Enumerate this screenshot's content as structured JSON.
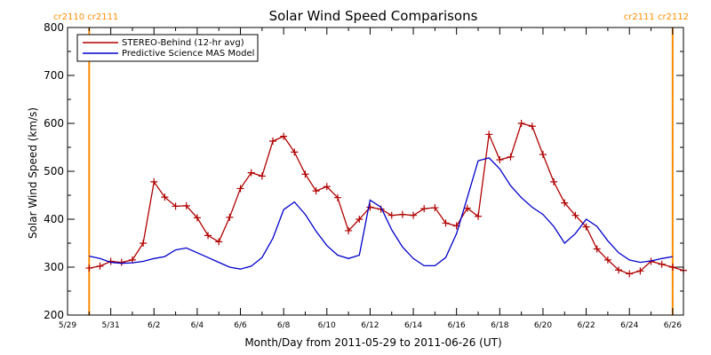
{
  "chart_data": {
    "type": "line",
    "title": "Solar Wind Speed Comparisons",
    "xlabel": "Month/Day from 2011-05-29 to 2011-06-26 (UT)",
    "ylabel": "Solar Wind Speed (km/s)",
    "ylim": [
      200,
      800
    ],
    "yticks": [
      200,
      300,
      400,
      500,
      600,
      700,
      800
    ],
    "xlim": [
      "2011-05-29",
      "2011-06-26 12:00"
    ],
    "xticks": [
      {
        "x": "2011-05-29",
        "label": "5/29"
      },
      {
        "x": "2011-05-31",
        "label": "5/31"
      },
      {
        "x": "2011-06-02",
        "label": "6/2"
      },
      {
        "x": "2011-06-04",
        "label": "6/4"
      },
      {
        "x": "2011-06-06",
        "label": "6/6"
      },
      {
        "x": "2011-06-08",
        "label": "6/8"
      },
      {
        "x": "2011-06-10",
        "label": "6/10"
      },
      {
        "x": "2011-06-12",
        "label": "6/12"
      },
      {
        "x": "2011-06-14",
        "label": "6/14"
      },
      {
        "x": "2011-06-16",
        "label": "6/16"
      },
      {
        "x": "2011-06-18",
        "label": "6/18"
      },
      {
        "x": "2011-06-20",
        "label": "6/20"
      },
      {
        "x": "2011-06-22",
        "label": "6/22"
      },
      {
        "x": "2011-06-24",
        "label": "6/24"
      },
      {
        "x": "2011-06-26",
        "label": "6/26"
      }
    ],
    "legend_position": "top-left",
    "grid": false,
    "vlines": [
      {
        "x": "2011-05-30",
        "label": "cr2110 cr2111",
        "color": "#ff8c00"
      },
      {
        "x": "2011-06-26",
        "label": "cr2111 cr2112",
        "color": "#ff8c00"
      }
    ],
    "series": [
      {
        "name": "STEREO-Behind (12-hr avg)",
        "color": "#b00000",
        "marker": "plus",
        "x": [
          "2011-05-30 00:00",
          "2011-05-30 12:00",
          "2011-05-31 00:00",
          "2011-05-31 12:00",
          "2011-06-01 00:00",
          "2011-06-01 12:00",
          "2011-06-02 00:00",
          "2011-06-02 12:00",
          "2011-06-03 00:00",
          "2011-06-03 12:00",
          "2011-06-04 00:00",
          "2011-06-04 12:00",
          "2011-06-05 00:00",
          "2011-06-05 12:00",
          "2011-06-06 00:00",
          "2011-06-06 12:00",
          "2011-06-07 00:00",
          "2011-06-07 12:00",
          "2011-06-08 00:00",
          "2011-06-08 12:00",
          "2011-06-09 00:00",
          "2011-06-09 12:00",
          "2011-06-10 00:00",
          "2011-06-10 12:00",
          "2011-06-11 00:00",
          "2011-06-11 12:00",
          "2011-06-12 00:00",
          "2011-06-12 12:00",
          "2011-06-13 00:00",
          "2011-06-13 12:00",
          "2011-06-14 00:00",
          "2011-06-14 12:00",
          "2011-06-15 00:00",
          "2011-06-15 12:00",
          "2011-06-16 00:00",
          "2011-06-16 12:00",
          "2011-06-17 00:00",
          "2011-06-17 12:00",
          "2011-06-18 00:00",
          "2011-06-18 12:00",
          "2011-06-19 00:00",
          "2011-06-19 12:00",
          "2011-06-20 00:00",
          "2011-06-20 12:00",
          "2011-06-21 00:00",
          "2011-06-21 12:00",
          "2011-06-22 00:00",
          "2011-06-22 12:00",
          "2011-06-23 00:00",
          "2011-06-23 12:00",
          "2011-06-24 00:00",
          "2011-06-24 12:00",
          "2011-06-25 00:00",
          "2011-06-25 12:00",
          "2011-06-26 00:00",
          "2011-06-26 12:00"
        ],
        "y": [
          298,
          302,
          312,
          310,
          315,
          350,
          478,
          446,
          427,
          428,
          403,
          366,
          353,
          404,
          464,
          497,
          490,
          563,
          573,
          540,
          494,
          459,
          468,
          445,
          376,
          400,
          425,
          421,
          408,
          410,
          408,
          422,
          424,
          392,
          386,
          423,
          406,
          577,
          524,
          530,
          600,
          594,
          535,
          478,
          434,
          408,
          384,
          338,
          315,
          294,
          286,
          292,
          312,
          306,
          300,
          293
        ]
      },
      {
        "name": "Predictive Science MAS Model",
        "color": "#0000cc",
        "marker": "none",
        "x": [
          "2011-05-30 00:00",
          "2011-05-30 12:00",
          "2011-05-31 00:00",
          "2011-05-31 12:00",
          "2011-06-01 00:00",
          "2011-06-01 12:00",
          "2011-06-02 00:00",
          "2011-06-02 12:00",
          "2011-06-03 00:00",
          "2011-06-03 12:00",
          "2011-06-04 00:00",
          "2011-06-04 12:00",
          "2011-06-05 00:00",
          "2011-06-05 12:00",
          "2011-06-06 00:00",
          "2011-06-06 12:00",
          "2011-06-07 00:00",
          "2011-06-07 12:00",
          "2011-06-08 00:00",
          "2011-06-08 12:00",
          "2011-06-09 00:00",
          "2011-06-09 12:00",
          "2011-06-10 00:00",
          "2011-06-10 12:00",
          "2011-06-11 00:00",
          "2011-06-11 12:00",
          "2011-06-12 00:00",
          "2011-06-12 12:00",
          "2011-06-13 00:00",
          "2011-06-13 12:00",
          "2011-06-14 00:00",
          "2011-06-14 12:00",
          "2011-06-15 00:00",
          "2011-06-15 12:00",
          "2011-06-16 00:00",
          "2011-06-16 12:00",
          "2011-06-17 00:00",
          "2011-06-17 12:00",
          "2011-06-18 00:00",
          "2011-06-18 12:00",
          "2011-06-19 00:00",
          "2011-06-19 12:00",
          "2011-06-20 00:00",
          "2011-06-20 12:00",
          "2011-06-21 00:00",
          "2011-06-21 12:00",
          "2011-06-22 00:00",
          "2011-06-22 12:00",
          "2011-06-23 00:00",
          "2011-06-23 12:00",
          "2011-06-24 00:00",
          "2011-06-24 12:00",
          "2011-06-25 00:00",
          "2011-06-25 12:00",
          "2011-06-26 00:00"
        ],
        "y": [
          323,
          318,
          310,
          308,
          309,
          312,
          318,
          322,
          336,
          340,
          330,
          320,
          310,
          300,
          296,
          302,
          320,
          360,
          420,
          436,
          410,
          375,
          345,
          325,
          318,
          325,
          440,
          425,
          378,
          342,
          318,
          303,
          303,
          320,
          370,
          445,
          522,
          528,
          505,
          470,
          445,
          425,
          410,
          385,
          350,
          370,
          400,
          385,
          355,
          330,
          315,
          310,
          313,
          318,
          322
        ]
      }
    ]
  }
}
